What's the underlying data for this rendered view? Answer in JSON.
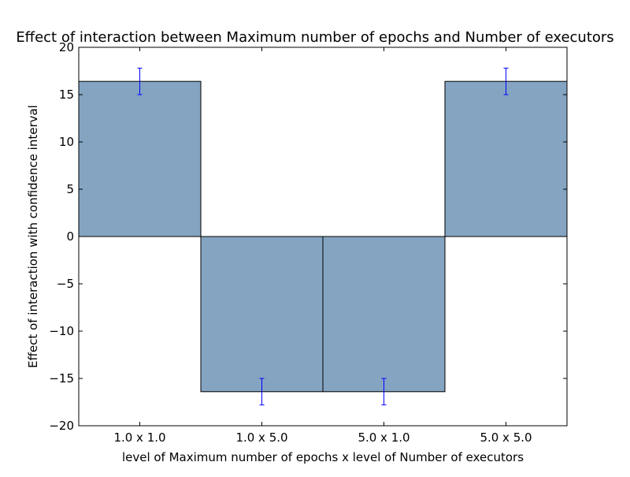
{
  "chart_data": {
    "type": "bar",
    "title": "Effect of interaction between Maximum number of epochs and Number of executors",
    "xlabel": "level of Maximum number of epochs x level of Number of executors",
    "ylabel": "Effect of interaction with confidence interval",
    "categories": [
      "1.0 x 1.0",
      "1.0 x 5.0",
      "5.0 x 1.0",
      "5.0 x 5.0"
    ],
    "values": [
      16.4,
      -16.4,
      -16.4,
      16.4
    ],
    "error_bars": [
      {
        "low": 15.0,
        "high": 17.8
      },
      {
        "low": -17.8,
        "high": -15.0
      },
      {
        "low": -17.8,
        "high": -15.0
      },
      {
        "low": 15.0,
        "high": 17.8
      }
    ],
    "ylim": [
      -20,
      20
    ],
    "yticks": [
      -20,
      -15,
      -10,
      -5,
      0,
      5,
      10,
      15,
      20
    ],
    "grid": false,
    "legend": "none",
    "colors": {
      "bar": "#84a4c2",
      "bar_edge": "#000000",
      "error_bar": "#0000ff"
    }
  }
}
